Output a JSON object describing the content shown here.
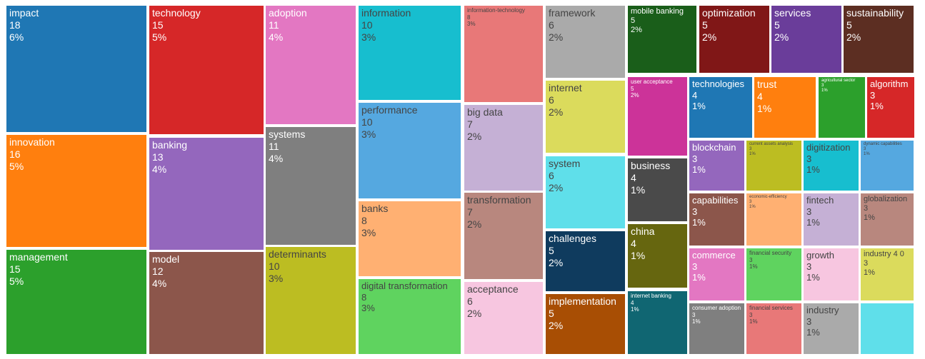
{
  "chart_data": {
    "type": "treemap",
    "items": [
      {
        "label": "impact",
        "count": 18,
        "percent": "6%",
        "color": "#1f77b4",
        "text": "#ffffff"
      },
      {
        "label": "innovation",
        "count": 16,
        "percent": "5%",
        "color": "#ff7f0e",
        "text": "#ffffff"
      },
      {
        "label": "management",
        "count": 15,
        "percent": "5%",
        "color": "#2ca02c",
        "text": "#ffffff"
      },
      {
        "label": "technology",
        "count": 15,
        "percent": "5%",
        "color": "#d62728",
        "text": "#ffffff"
      },
      {
        "label": "banking",
        "count": 13,
        "percent": "4%",
        "color": "#9467bd",
        "text": "#ffffff"
      },
      {
        "label": "model",
        "count": 12,
        "percent": "4%",
        "color": "#8c564b",
        "text": "#ffffff"
      },
      {
        "label": "adoption",
        "count": 11,
        "percent": "4%",
        "color": "#e377c2",
        "text": "#ffffff"
      },
      {
        "label": "systems",
        "count": 11,
        "percent": "4%",
        "color": "#7f7f7f",
        "text": "#ffffff"
      },
      {
        "label": "determinants",
        "count": 10,
        "percent": "3%",
        "color": "#bcbd22",
        "text": "#444444"
      },
      {
        "label": "information",
        "count": 10,
        "percent": "3%",
        "color": "#17becf",
        "text": "#444444"
      },
      {
        "label": "performance",
        "count": 10,
        "percent": "3%",
        "color": "#55a8e0",
        "text": "#444444"
      },
      {
        "label": "banks",
        "count": 8,
        "percent": "3%",
        "color": "#ffb072",
        "text": "#444444"
      },
      {
        "label": "digital transformation",
        "count": 8,
        "percent": "3%",
        "color": "#5fd35f",
        "text": "#444444"
      },
      {
        "label": "information-technology",
        "count": 8,
        "percent": "3%",
        "color": "#e87878",
        "text": "#444444"
      },
      {
        "label": "big data",
        "count": 7,
        "percent": "2%",
        "color": "#c5b0d5",
        "text": "#444444"
      },
      {
        "label": "transformation",
        "count": 7,
        "percent": "2%",
        "color": "#b8877e",
        "text": "#444444"
      },
      {
        "label": "acceptance",
        "count": 6,
        "percent": "2%",
        "color": "#f7c6e0",
        "text": "#444444"
      },
      {
        "label": "framework",
        "count": 6,
        "percent": "2%",
        "color": "#aaaaaa",
        "text": "#444444"
      },
      {
        "label": "internet",
        "count": 6,
        "percent": "2%",
        "color": "#dbdb5c",
        "text": "#444444"
      },
      {
        "label": "system",
        "count": 6,
        "percent": "2%",
        "color": "#5fdfea",
        "text": "#444444"
      },
      {
        "label": "challenges",
        "count": 5,
        "percent": "2%",
        "color": "#0f3b5e",
        "text": "#ffffff"
      },
      {
        "label": "implementation",
        "count": 5,
        "percent": "2%",
        "color": "#a84e04",
        "text": "#ffffff"
      },
      {
        "label": "mobile banking",
        "count": 5,
        "percent": "2%",
        "color": "#1a5e1a",
        "text": "#ffffff"
      },
      {
        "label": "user acceptance",
        "count": 5,
        "percent": "2%",
        "color": "#cc3399",
        "text": "#ffffff"
      },
      {
        "label": "optimization",
        "count": 5,
        "percent": "2%",
        "color": "#801717",
        "text": "#ffffff"
      },
      {
        "label": "services",
        "count": 5,
        "percent": "2%",
        "color": "#6a3d9a",
        "text": "#ffffff"
      },
      {
        "label": "sustainability",
        "count": 5,
        "percent": "2%",
        "color": "#5c2e22",
        "text": "#ffffff"
      },
      {
        "label": "business",
        "count": 4,
        "percent": "1%",
        "color": "#4a4a4a",
        "text": "#ffffff"
      },
      {
        "label": "china",
        "count": 4,
        "percent": "1%",
        "color": "#66660f",
        "text": "#ffffff"
      },
      {
        "label": "internet banking",
        "count": 4,
        "percent": "1%",
        "color": "#106672",
        "text": "#ffffff"
      },
      {
        "label": "technologies",
        "count": 4,
        "percent": "1%",
        "color": "#1f77b4",
        "text": "#ffffff"
      },
      {
        "label": "trust",
        "count": 4,
        "percent": "1%",
        "color": "#ff7f0e",
        "text": "#ffffff"
      },
      {
        "label": "agricultural sector",
        "count": 3,
        "percent": "1%",
        "color": "#2ca02c",
        "text": "#ffffff"
      },
      {
        "label": "algorithm",
        "count": 3,
        "percent": "1%",
        "color": "#d62728",
        "text": "#ffffff"
      },
      {
        "label": "blockchain",
        "count": 3,
        "percent": "1%",
        "color": "#9467bd",
        "text": "#ffffff"
      },
      {
        "label": "capabilities",
        "count": 3,
        "percent": "1%",
        "color": "#8c564b",
        "text": "#ffffff"
      },
      {
        "label": "commerce",
        "count": 3,
        "percent": "1%",
        "color": "#e377c2",
        "text": "#ffffff"
      },
      {
        "label": "consumer adoption",
        "count": 3,
        "percent": "1%",
        "color": "#7f7f7f",
        "text": "#ffffff"
      },
      {
        "label": "current assets analysis",
        "count": 3,
        "percent": "1%",
        "color": "#bcbd22",
        "text": "#444444"
      },
      {
        "label": "economic-efficiency",
        "count": 3,
        "percent": "1%",
        "color": "#ffb072",
        "text": "#444444"
      },
      {
        "label": "financial security",
        "count": 3,
        "percent": "1%",
        "color": "#5fd35f",
        "text": "#444444"
      },
      {
        "label": "financial services",
        "count": 3,
        "percent": "1%",
        "color": "#e87878",
        "text": "#444444"
      },
      {
        "label": "digitization",
        "count": 3,
        "percent": "1%",
        "color": "#17becf",
        "text": "#444444"
      },
      {
        "label": "fintech",
        "count": 3,
        "percent": "1%",
        "color": "#c5b0d5",
        "text": "#444444"
      },
      {
        "label": "growth",
        "count": 3,
        "percent": "1%",
        "color": "#f7c6e0",
        "text": "#444444"
      },
      {
        "label": "industry",
        "count": 3,
        "percent": "1%",
        "color": "#aaaaaa",
        "text": "#444444"
      },
      {
        "label": "dynamic capabilities",
        "count": 3,
        "percent": "1%",
        "color": "#55a8e0",
        "text": "#444444"
      },
      {
        "label": "globalization",
        "count": 3,
        "percent": "1%",
        "color": "#b8877e",
        "text": "#444444"
      },
      {
        "label": "industry 4 0",
        "count": 3,
        "percent": "1%",
        "color": "#dbdb5c",
        "text": "#444444"
      },
      {
        "label": "",
        "count": null,
        "percent": "",
        "color": "#5fdfea",
        "text": "#444444"
      }
    ]
  }
}
